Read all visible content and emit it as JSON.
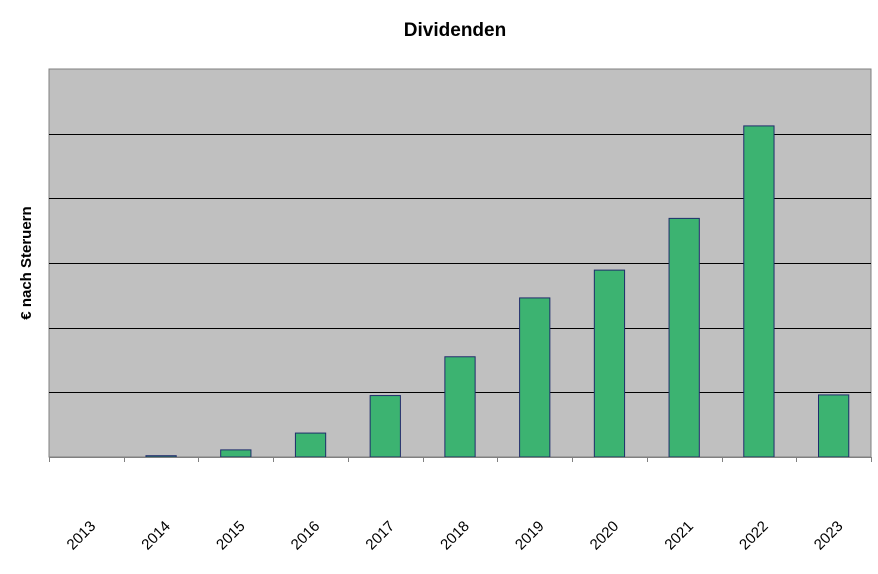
{
  "chart_data": {
    "type": "bar",
    "title": "Dividenden",
    "xlabel": "",
    "ylabel": "€ nach Steruern",
    "categories": [
      "2013",
      "2014",
      "2015",
      "2016",
      "2017",
      "2018",
      "2019",
      "2020",
      "2021",
      "2022",
      "2023"
    ],
    "values": [
      0,
      0.02,
      0.11,
      0.37,
      0.95,
      1.55,
      2.46,
      2.89,
      3.69,
      5.12,
      0.96
    ],
    "ylim": [
      0,
      6
    ],
    "y_gridlines": [
      1,
      2,
      3,
      4,
      5
    ],
    "y_tick_labels_visible": false,
    "grid": true,
    "colors": {
      "plot_background": "#c0c0c0",
      "bar_fill": "#3cb371",
      "bar_stroke": "#1f2d6b",
      "gridline": "#000000",
      "axis": "#808080"
    }
  }
}
